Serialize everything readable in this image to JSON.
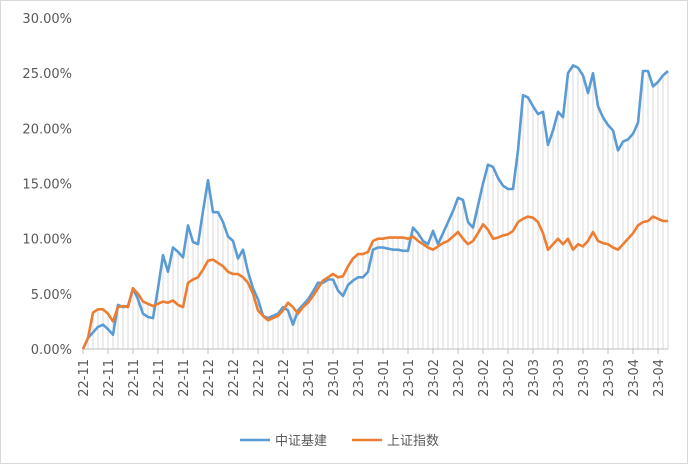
{
  "chart_data": {
    "type": "line",
    "categories": [
      "22-11",
      null,
      null,
      null,
      null,
      "22-11",
      null,
      null,
      null,
      null,
      "22-11",
      null,
      null,
      null,
      null,
      "22-11",
      null,
      null,
      null,
      null,
      "22-11",
      null,
      null,
      null,
      null,
      "22-12",
      null,
      null,
      null,
      null,
      "22-12",
      null,
      null,
      null,
      null,
      "22-12",
      null,
      null,
      null,
      null,
      "22-12",
      null,
      null,
      null,
      null,
      "23-01",
      null,
      null,
      null,
      null,
      "23-01",
      null,
      null,
      null,
      null,
      "23-01",
      null,
      null,
      null,
      null,
      "23-01",
      null,
      null,
      null,
      null,
      "23-01",
      null,
      null,
      null,
      null,
      "23-02",
      null,
      null,
      null,
      null,
      "23-02",
      null,
      null,
      null,
      null,
      "23-02",
      null,
      null,
      null,
      null,
      "23-02",
      null,
      null,
      null,
      null,
      "23-03",
      null,
      null,
      null,
      null,
      "23-03",
      null,
      null,
      null,
      null,
      "23-03",
      null,
      null,
      null,
      null,
      "23-03",
      null,
      null,
      null,
      null,
      "23-04",
      null,
      null,
      null,
      null,
      "23-04",
      null,
      null
    ],
    "series": [
      {
        "name": "中证基建",
        "color": "#5b9bd5",
        "values": [
          0,
          1.0,
          1.5,
          2.0,
          2.2,
          1.8,
          1.3,
          4.0,
          3.8,
          3.9,
          5.5,
          4.5,
          3.2,
          2.9,
          2.8,
          5.5,
          8.5,
          7.0,
          9.2,
          8.8,
          8.3,
          11.2,
          9.7,
          9.5,
          12.5,
          15.3,
          12.4,
          12.4,
          11.5,
          10.2,
          9.8,
          8.2,
          9.0,
          7.0,
          5.5,
          4.5,
          3.0,
          2.8,
          3.0,
          3.2,
          3.8,
          3.5,
          2.2,
          3.5,
          4.0,
          4.5,
          5.2,
          6.0,
          6.0,
          6.3,
          6.3,
          5.3,
          4.8,
          5.8,
          6.2,
          6.5,
          6.5,
          7.0,
          9.0,
          9.2,
          9.2,
          9.1,
          9.0,
          9.0,
          8.9,
          8.9,
          11.0,
          10.5,
          9.8,
          9.5,
          10.7,
          9.5,
          10.5,
          11.5,
          12.5,
          13.7,
          13.5,
          11.5,
          11.0,
          13.0,
          15.0,
          16.7,
          16.5,
          15.5,
          14.8,
          14.5,
          14.5,
          18.0,
          23.0,
          22.8,
          22.0,
          21.3,
          21.5,
          18.5,
          19.8,
          21.5,
          21.0,
          25.0,
          25.7,
          25.5,
          24.8,
          23.2,
          25.0,
          22.0,
          21.0,
          20.3,
          19.8,
          18.0,
          18.8,
          19.0,
          19.5,
          20.5,
          25.2,
          25.2,
          23.8,
          24.2,
          24.8,
          25.2
        ]
      },
      {
        "name": "上证指数",
        "color": "#ed7d31",
        "values": [
          0,
          1.0,
          3.3,
          3.6,
          3.6,
          3.2,
          2.5,
          3.8,
          3.9,
          3.8,
          5.5,
          5.0,
          4.3,
          4.1,
          3.9,
          4.1,
          4.3,
          4.2,
          4.4,
          4.0,
          3.8,
          6.0,
          6.3,
          6.5,
          7.2,
          8.0,
          8.1,
          7.8,
          7.5,
          7.0,
          6.8,
          6.8,
          6.5,
          6.0,
          5.0,
          3.5,
          3.0,
          2.6,
          2.8,
          3.0,
          3.5,
          4.2,
          3.8,
          3.2,
          3.8,
          4.2,
          4.8,
          5.5,
          6.2,
          6.5,
          6.8,
          6.5,
          6.6,
          7.5,
          8.2,
          8.6,
          8.6,
          8.8,
          9.8,
          10.0,
          10.0,
          10.1,
          10.1,
          10.1,
          10.1,
          10.0,
          10.2,
          9.8,
          9.5,
          9.2,
          9.0,
          9.3,
          9.6,
          9.8,
          10.2,
          10.6,
          10.0,
          9.5,
          9.8,
          10.5,
          11.3,
          10.8,
          10.0,
          10.1,
          10.3,
          10.4,
          10.7,
          11.5,
          11.8,
          12.0,
          11.9,
          11.5,
          10.5,
          9.0,
          9.5,
          10.0,
          9.5,
          10.0,
          9.0,
          9.5,
          9.3,
          9.8,
          10.6,
          9.8,
          9.6,
          9.5,
          9.2,
          9.0,
          9.5,
          10.0,
          10.5,
          11.2,
          11.5,
          11.6,
          12.0,
          11.8,
          11.6,
          11.6
        ]
      }
    ],
    "ylim": [
      0,
      30
    ],
    "yticks": [
      {
        "value": 0,
        "label": "0.00%"
      },
      {
        "value": 5,
        "label": "5.00%"
      },
      {
        "value": 10,
        "label": "10.00%"
      },
      {
        "value": 15,
        "label": "15.00%"
      },
      {
        "value": 20,
        "label": "20.00%"
      },
      {
        "value": 25,
        "label": "25.00%"
      },
      {
        "value": 30,
        "label": "30.00%"
      }
    ],
    "legend": "bottom"
  }
}
